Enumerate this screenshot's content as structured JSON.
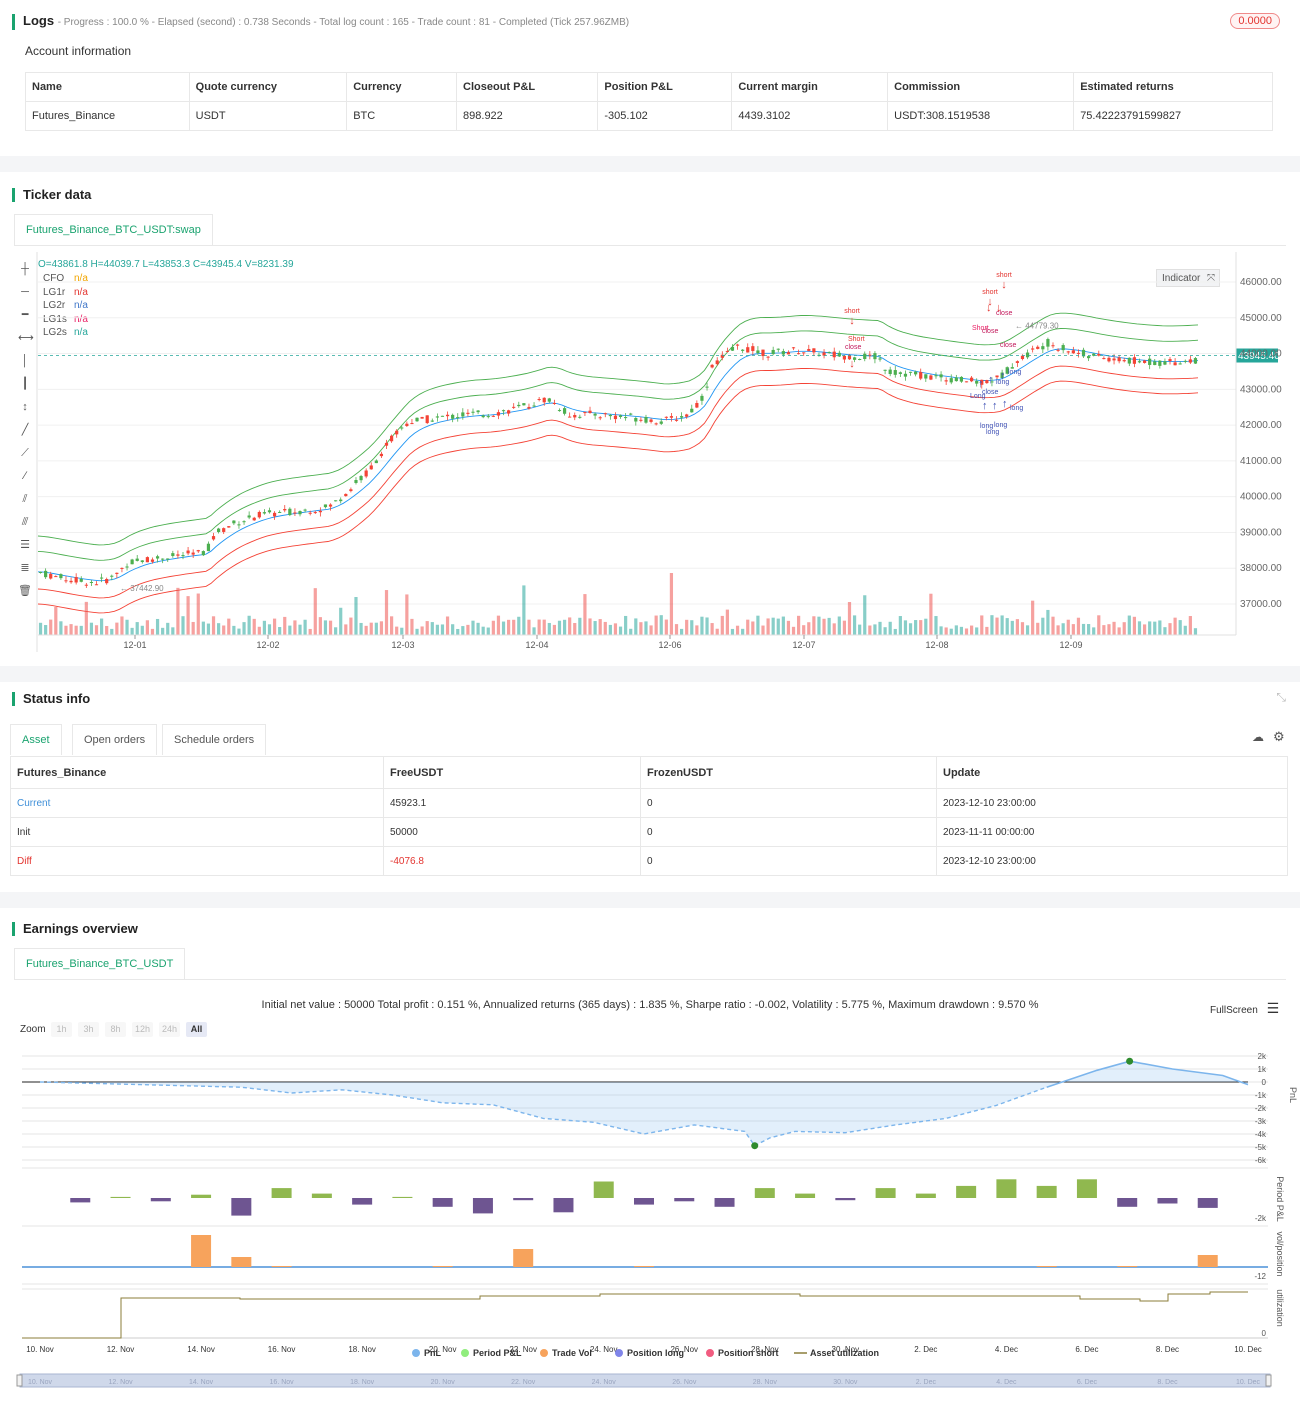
{
  "logs": {
    "title": "Logs",
    "status": "- Progress : 100.0 % - Elapsed (second) : 0.738  Seconds - Total log count : 165 - Trade count : 81 - Completed (Tick 257.96ZMB)",
    "badge": "0.0000"
  },
  "account": {
    "title": "Account information",
    "headers": [
      "Name",
      "Quote currency",
      "Currency",
      "Closeout P&L",
      "Position P&L",
      "Current margin",
      "Commission",
      "Estimated returns"
    ],
    "row": [
      "Futures_Binance",
      "USDT",
      "BTC",
      "898.922",
      "-305.102",
      "4439.3102",
      "USDT:308.1519538",
      "75.42223791599827"
    ]
  },
  "ticker": {
    "title": "Ticker data",
    "tab": "Futures_Binance_BTC_USDT:swap",
    "ohlc": "O=43861.8 H=44039.7 L=43853.3 C=43945.4 V=8231.39",
    "legend": [
      {
        "name": "CFO",
        "value": "n/a",
        "color": "#f2a600"
      },
      {
        "name": "LG1r",
        "value": "n/a",
        "color": "#e3342f"
      },
      {
        "name": "LG2r",
        "value": "n/a",
        "color": "#3f76c8"
      },
      {
        "name": "LG1s",
        "value": "n/a",
        "color": "#e91e63"
      },
      {
        "name": "LG2s",
        "value": "n/a",
        "color": "#26a69a"
      }
    ],
    "indicator_label": "Indicator",
    "price_ticks": [
      "46000.00",
      "45000.00",
      "44000.00",
      "43000.00",
      "42000.00",
      "41000.00",
      "40000.00",
      "39000.00",
      "38000.00",
      "37000.00"
    ],
    "date_ticks": [
      "12-01",
      "12-02",
      "12-03",
      "12-04",
      "12-06",
      "12-07",
      "12-08",
      "12-09"
    ],
    "last_price": "43945.40",
    "high_label": "44779.30",
    "low_label": "37442.90",
    "signal_labels": {
      "short": "short",
      "close": "close",
      "long": "long",
      "Short": "Short",
      "Long": "Long"
    }
  },
  "status": {
    "title": "Status info",
    "tabs": [
      "Asset",
      "Open orders",
      "Schedule orders"
    ],
    "headers": [
      "Futures_Binance",
      "FreeUSDT",
      "FrozenUSDT",
      "Update"
    ],
    "rows": [
      {
        "label": "Current",
        "free": "45923.1",
        "frozen": "0",
        "update": "2023-12-10 23:00:00",
        "color": "#3f8fd8"
      },
      {
        "label": "Init",
        "free": "50000",
        "frozen": "0",
        "update": "2023-11-11 00:00:00",
        "color": "#333333"
      },
      {
        "label": "Diff",
        "free": "-4076.8",
        "frozen": "0",
        "update": "2023-12-10 23:00:00",
        "color": "#e3342f"
      }
    ]
  },
  "earnings": {
    "title": "Earnings overview",
    "tab": "Futures_Binance_BTC_USDT",
    "summary": "Initial net value : 50000  Total profit : 0.151 %, Annualized returns (365 days) : 1.835 %, Sharpe ratio : -0.002, Volatility : 5.775 %, Maximum drawdown : 9.570 %",
    "fullscreen": "FullScreen",
    "zoom_label": "Zoom",
    "zoom_options": [
      "1h",
      "3h",
      "8h",
      "12h",
      "24h",
      "All"
    ],
    "pnl_ticks": [
      "2k",
      "1k",
      "0",
      "-1k",
      "-2k",
      "-3k",
      "-4k",
      "-5k",
      "-6k"
    ],
    "period_tick": "-2k",
    "vol_tick": "-12",
    "util_tick": "0",
    "axis_titles": [
      "PnL",
      "Period P&L",
      "vol/position",
      "utilization"
    ],
    "date_ticks": [
      "10. Nov",
      "12. Nov",
      "14. Nov",
      "16. Nov",
      "18. Nov",
      "20. Nov",
      "22. Nov",
      "24. Nov",
      "26. Nov",
      "28. Nov",
      "30. Nov",
      "2. Dec",
      "4. Dec",
      "6. Dec",
      "8. Dec",
      "10. Dec"
    ],
    "legend": [
      {
        "name": "PnL",
        "color": "#7cb5ec",
        "type": "dot"
      },
      {
        "name": "Period P&L",
        "color": "#90ed7d",
        "type": "dot"
      },
      {
        "name": "Trade Vol",
        "color": "#f7a35c",
        "type": "dot"
      },
      {
        "name": "Position long",
        "color": "#8085e9",
        "type": "dot"
      },
      {
        "name": "Position short",
        "color": "#f15c80",
        "type": "dot"
      },
      {
        "name": "Asset utilization",
        "color": "#8b7d3a",
        "type": "line"
      }
    ]
  }
}
